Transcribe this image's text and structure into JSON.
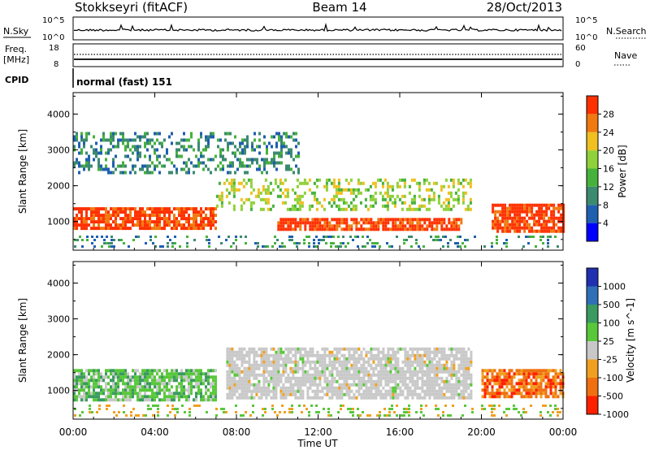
{
  "header": {
    "station": "Stokkseyri (fitACF)",
    "beam": "Beam 14",
    "date": "28/Oct/2013"
  },
  "noise_panel": {
    "left_label": "N.Sky",
    "left_ticks": [
      "10^5",
      "10^0"
    ],
    "right_ticks": [
      "10^5",
      "10^0"
    ],
    "right_label": "N.Search"
  },
  "freq_panel": {
    "left_label_line1": "Freq.",
    "left_label_line2": "[MHz]",
    "left_ticks": [
      "18",
      "8"
    ],
    "right_ticks": [
      "60",
      "0"
    ],
    "right_label": "Nave"
  },
  "cpid_panel": {
    "label": "CPID",
    "mode_text": "normal (fast) 151"
  },
  "time_axis": {
    "title": "Time UT",
    "tick_labels": [
      "00:00",
      "04:00",
      "08:00",
      "12:00",
      "16:00",
      "20:00",
      "00:00"
    ]
  },
  "colors": {
    "power_scale": [
      "#0000ff",
      "#1f5fb0",
      "#3c8a70",
      "#46b23c",
      "#8fd13a",
      "#f0c020",
      "#f07a10",
      "#ff3000"
    ],
    "velocity_scale": [
      "#2030b0",
      "#2f6fb8",
      "#3a9a60",
      "#58c83a",
      "#c8c8c8",
      "#f0a020",
      "#f07010",
      "#ff2000"
    ],
    "scatter_gray": "#c8c8c8"
  },
  "chart_data": [
    {
      "type": "heatmap",
      "title": "Power",
      "xlabel": "Time UT",
      "ylabel": "Slant Range [km]",
      "xlim": [
        "00:00",
        "24:00"
      ],
      "ylim": [
        200,
        4600
      ],
      "y_ticks": [
        "4000",
        "3000",
        "2000",
        "1000"
      ],
      "colorbar": {
        "label": "Power [dB]",
        "ticks": [
          "28",
          "24",
          "20",
          "16",
          "12",
          "8",
          "4"
        ],
        "range": [
          0,
          30
        ]
      },
      "features": [
        {
          "name": "main echo band",
          "time_start_h": 0,
          "time_end_h": 7,
          "range_km": [
            800,
            1400
          ],
          "power_db": 28
        },
        {
          "name": "main echo band",
          "time_start_h": 10,
          "time_end_h": 19,
          "range_km": [
            800,
            1100
          ],
          "power_db": 28
        },
        {
          "name": "main echo band",
          "time_start_h": 20.5,
          "time_end_h": 24,
          "range_km": [
            700,
            1500
          ],
          "power_db": 28
        },
        {
          "name": "mid-range scatter",
          "time_start_h": 7,
          "time_end_h": 19.5,
          "range_km": [
            1300,
            2200
          ],
          "power_db": 14
        },
        {
          "name": "far-range patches",
          "time_start_h": 0,
          "time_end_h": 11,
          "range_km": [
            2400,
            3500
          ],
          "power_db": 8
        }
      ]
    },
    {
      "type": "heatmap",
      "title": "Velocity",
      "xlabel": "Time UT",
      "ylabel": "Slant Range [km]",
      "xlim": [
        "00:00",
        "24:00"
      ],
      "ylim": [
        200,
        4600
      ],
      "y_ticks": [
        "4000",
        "3000",
        "2000",
        "1000"
      ],
      "colorbar": {
        "label": "Velocity [m s^-1]",
        "ticks": [
          "1000",
          "500",
          "100",
          "25",
          "-25",
          "-100",
          "-500",
          "-1000"
        ]
      },
      "features": [
        {
          "name": "ground scatter (low velocity)",
          "time_start_h": 7.5,
          "time_end_h": 19.5,
          "range_km": [
            800,
            2200
          ],
          "velocity_ms": 0
        },
        {
          "name": "negative velocity band",
          "time_start_h": 20,
          "time_end_h": 24,
          "range_km": [
            800,
            1600
          ],
          "velocity_ms": -300
        },
        {
          "name": "mixed velocity band",
          "time_start_h": 0,
          "time_end_h": 7,
          "range_km": [
            700,
            1600
          ],
          "velocity_ms": 100
        }
      ]
    }
  ]
}
